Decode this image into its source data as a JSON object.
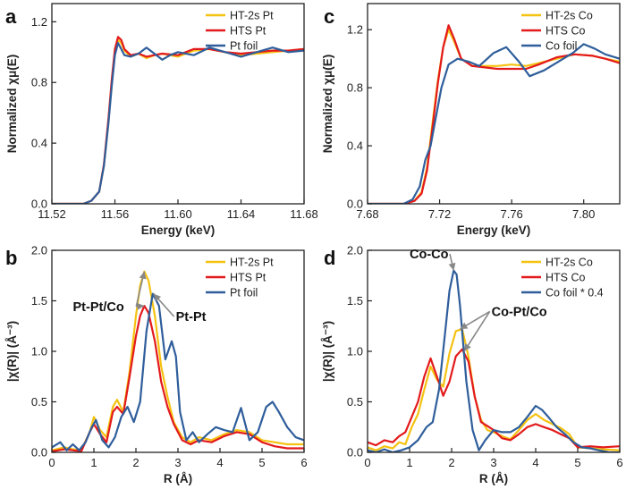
{
  "chart_data": [
    {
      "panel": "a",
      "type": "line",
      "xlabel": "Energy (keV)",
      "ylabel": "Normalized χμ(E)",
      "xlim": [
        11.52,
        11.68
      ],
      "ylim": [
        0,
        1.32
      ],
      "xticks": [
        11.52,
        11.56,
        11.6,
        11.64,
        11.68
      ],
      "xtick_labels": [
        "11.52",
        "11.56",
        "11.60",
        "11.64",
        "11.68"
      ],
      "yticks": [
        0,
        0.4,
        0.8,
        1.2
      ],
      "ytick_labels": [
        "0.0",
        "0.4",
        "0.8",
        "1.2"
      ],
      "legend_position": "top-right",
      "series": [
        {
          "name": "HT-2s Pt",
          "color": "#f5c211",
          "x": [
            11.52,
            11.54,
            11.545,
            11.55,
            11.553,
            11.556,
            11.558,
            11.56,
            11.562,
            11.564,
            11.566,
            11.57,
            11.575,
            11.58,
            11.585,
            11.59,
            11.6,
            11.61,
            11.62,
            11.63,
            11.64,
            11.65,
            11.66,
            11.67,
            11.68
          ],
          "y": [
            0.0,
            0.0,
            0.02,
            0.08,
            0.25,
            0.55,
            0.8,
            1.0,
            1.08,
            1.06,
            1.01,
            0.97,
            0.99,
            0.96,
            0.98,
            0.99,
            0.97,
            1.01,
            1.02,
            1.0,
            0.98,
            0.99,
            1.0,
            1.01,
            1.02
          ]
        },
        {
          "name": "HTS Pt",
          "color": "#e31a1c",
          "x": [
            11.52,
            11.54,
            11.545,
            11.55,
            11.553,
            11.556,
            11.558,
            11.56,
            11.562,
            11.564,
            11.566,
            11.57,
            11.575,
            11.58,
            11.585,
            11.59,
            11.6,
            11.61,
            11.62,
            11.63,
            11.64,
            11.65,
            11.66,
            11.67,
            11.68
          ],
          "y": [
            0.0,
            0.0,
            0.02,
            0.08,
            0.26,
            0.57,
            0.82,
            1.02,
            1.1,
            1.08,
            1.02,
            0.98,
            0.99,
            0.97,
            0.98,
            0.99,
            0.98,
            1.02,
            1.02,
            1.0,
            0.99,
            1.0,
            1.01,
            1.01,
            1.02
          ]
        },
        {
          "name": "Pt foil",
          "color": "#2f5e9b",
          "x": [
            11.52,
            11.54,
            11.545,
            11.55,
            11.553,
            11.556,
            11.558,
            11.56,
            11.562,
            11.564,
            11.566,
            11.57,
            11.575,
            11.58,
            11.585,
            11.59,
            11.595,
            11.6,
            11.61,
            11.62,
            11.63,
            11.64,
            11.65,
            11.66,
            11.67,
            11.68
          ],
          "y": [
            0.0,
            0.0,
            0.02,
            0.08,
            0.25,
            0.54,
            0.78,
            0.98,
            1.06,
            1.02,
            0.98,
            0.97,
            0.99,
            1.03,
            0.99,
            0.95,
            0.98,
            1.0,
            0.98,
            1.03,
            1.0,
            0.97,
            1.0,
            1.03,
            1.0,
            1.01
          ]
        }
      ]
    },
    {
      "panel": "b",
      "type": "line",
      "xlabel": "R (Å)",
      "ylabel": "|χ(R)| (Å⁻³)",
      "xlim": [
        0,
        6
      ],
      "ylim": [
        0,
        2.0
      ],
      "xticks": [
        0,
        1,
        2,
        3,
        4,
        5,
        6
      ],
      "xtick_labels": [
        "0",
        "1",
        "2",
        "3",
        "4",
        "5",
        "6"
      ],
      "yticks": [
        0,
        0.5,
        1.0,
        1.5,
        2.0
      ],
      "ytick_labels": [
        "0.0",
        "0.5",
        "1.0",
        "1.5",
        "2.0"
      ],
      "legend_position": "top-right",
      "annotations": [
        {
          "text": "Pt-Pt/Co",
          "x": 0.5,
          "y": 1.4
        },
        {
          "text": "Pt-Pt",
          "x": 2.95,
          "y": 1.3
        }
      ],
      "series": [
        {
          "name": "HT-2s Pt",
          "color": "#f5c211",
          "x": [
            0,
            0.3,
            0.5,
            0.7,
            0.9,
            1.0,
            1.15,
            1.3,
            1.45,
            1.55,
            1.7,
            1.85,
            2.0,
            2.1,
            2.2,
            2.3,
            2.45,
            2.6,
            2.75,
            2.9,
            3.1,
            3.3,
            3.5,
            3.8,
            4.1,
            4.4,
            4.7,
            5.0,
            5.3,
            5.6,
            6.0
          ],
          "y": [
            0.02,
            0.05,
            0.03,
            0.02,
            0.2,
            0.35,
            0.22,
            0.15,
            0.45,
            0.52,
            0.4,
            0.8,
            1.35,
            1.65,
            1.79,
            1.7,
            1.35,
            0.85,
            0.55,
            0.3,
            0.15,
            0.1,
            0.15,
            0.12,
            0.18,
            0.22,
            0.2,
            0.12,
            0.1,
            0.08,
            0.08
          ]
        },
        {
          "name": "HTS Pt",
          "color": "#e31a1c",
          "x": [
            0,
            0.3,
            0.5,
            0.7,
            0.9,
            1.0,
            1.15,
            1.3,
            1.45,
            1.55,
            1.7,
            1.85,
            2.0,
            2.1,
            2.2,
            2.3,
            2.45,
            2.6,
            2.75,
            2.9,
            3.1,
            3.3,
            3.5,
            3.8,
            4.1,
            4.4,
            4.7,
            5.0,
            5.3,
            5.6,
            6.0
          ],
          "y": [
            0.01,
            0.03,
            0.02,
            0.01,
            0.2,
            0.28,
            0.18,
            0.1,
            0.4,
            0.45,
            0.38,
            0.75,
            1.15,
            1.35,
            1.45,
            1.38,
            1.1,
            0.7,
            0.45,
            0.28,
            0.12,
            0.08,
            0.12,
            0.1,
            0.16,
            0.2,
            0.18,
            0.1,
            0.06,
            0.04,
            0.04
          ]
        },
        {
          "name": "Pt foil",
          "color": "#2f5e9b",
          "x": [
            0,
            0.2,
            0.35,
            0.5,
            0.65,
            0.8,
            0.95,
            1.05,
            1.2,
            1.35,
            1.5,
            1.65,
            1.8,
            1.95,
            2.1,
            2.25,
            2.4,
            2.55,
            2.7,
            2.85,
            2.95,
            3.05,
            3.2,
            3.35,
            3.5,
            3.7,
            3.9,
            4.1,
            4.3,
            4.5,
            4.7,
            4.9,
            5.1,
            5.25,
            5.4,
            5.6,
            5.8,
            6.0
          ],
          "y": [
            0.05,
            0.1,
            0.02,
            0.08,
            0.02,
            0.1,
            0.25,
            0.32,
            0.12,
            0.05,
            0.15,
            0.35,
            0.45,
            0.3,
            0.5,
            1.2,
            1.57,
            1.45,
            0.92,
            1.1,
            0.95,
            0.4,
            0.12,
            0.2,
            0.1,
            0.18,
            0.25,
            0.22,
            0.2,
            0.44,
            0.12,
            0.2,
            0.45,
            0.5,
            0.4,
            0.25,
            0.15,
            0.12
          ]
        }
      ]
    },
    {
      "panel": "c",
      "type": "line",
      "xlabel": "Energy (keV)",
      "ylabel": "Normalized χμ(E)",
      "xlim": [
        7.68,
        7.82
      ],
      "ylim": [
        0,
        1.38
      ],
      "xticks": [
        7.68,
        7.72,
        7.76,
        7.8
      ],
      "xtick_labels": [
        "7.68",
        "7.72",
        "7.76",
        "7.80"
      ],
      "yticks": [
        0,
        0.4,
        0.8,
        1.2
      ],
      "ytick_labels": [
        "0.0",
        "0.4",
        "0.8",
        "1.2"
      ],
      "legend_position": "top-right",
      "series": [
        {
          "name": "HT-2s Co",
          "color": "#f5c211",
          "x": [
            7.68,
            7.7,
            7.706,
            7.71,
            7.713,
            7.716,
            7.719,
            7.722,
            7.725,
            7.728,
            7.732,
            7.738,
            7.745,
            7.752,
            7.76,
            7.768,
            7.775,
            7.785,
            7.795,
            7.805,
            7.812,
            7.82
          ],
          "y": [
            0.0,
            0.0,
            0.02,
            0.08,
            0.25,
            0.55,
            0.85,
            1.08,
            1.2,
            1.12,
            1.0,
            0.95,
            0.95,
            0.95,
            0.96,
            0.95,
            0.97,
            1.0,
            1.03,
            1.02,
            1.0,
            0.98
          ]
        },
        {
          "name": "HTS Co",
          "color": "#e31a1c",
          "x": [
            7.68,
            7.7,
            7.706,
            7.71,
            7.713,
            7.716,
            7.719,
            7.722,
            7.725,
            7.728,
            7.732,
            7.738,
            7.745,
            7.752,
            7.76,
            7.768,
            7.775,
            7.785,
            7.795,
            7.805,
            7.812,
            7.82
          ],
          "y": [
            0.0,
            0.0,
            0.02,
            0.07,
            0.23,
            0.52,
            0.83,
            1.08,
            1.23,
            1.14,
            1.0,
            0.95,
            0.94,
            0.93,
            0.93,
            0.93,
            0.96,
            1.01,
            1.03,
            1.02,
            1.0,
            0.97
          ]
        },
        {
          "name": "Co foil",
          "color": "#2f5e9b",
          "x": [
            7.68,
            7.7,
            7.705,
            7.709,
            7.712,
            7.715,
            7.718,
            7.721,
            7.725,
            7.73,
            7.736,
            7.742,
            7.75,
            7.757,
            7.764,
            7.77,
            7.778,
            7.786,
            7.794,
            7.8,
            7.806,
            7.812,
            7.82
          ],
          "y": [
            0.0,
            0.0,
            0.03,
            0.12,
            0.3,
            0.4,
            0.6,
            0.8,
            0.96,
            1.0,
            0.98,
            0.95,
            1.04,
            1.08,
            0.98,
            0.88,
            0.92,
            0.98,
            1.04,
            1.1,
            1.07,
            1.03,
            1.0
          ]
        }
      ]
    },
    {
      "panel": "d",
      "type": "line",
      "xlabel": "R (Å)",
      "ylabel": "|χ(R)| (Å⁻³)",
      "xlim": [
        0,
        6
      ],
      "ylim": [
        0,
        2.0
      ],
      "xticks": [
        0,
        1,
        2,
        3,
        4,
        5,
        6
      ],
      "xtick_labels": [
        "0",
        "1",
        "2",
        "3",
        "4",
        "5",
        "6"
      ],
      "yticks": [
        0,
        0.5,
        1.0,
        1.5,
        2.0
      ],
      "ytick_labels": [
        "0.0",
        "0.5",
        "1.0",
        "1.5",
        "2.0"
      ],
      "legend_position": "top-right",
      "annotations": [
        {
          "text": "Co-Co",
          "x": 1.0,
          "y": 1.92
        },
        {
          "text": "Co-Pt/Co",
          "x": 2.95,
          "y": 1.35
        }
      ],
      "series": [
        {
          "name": "HT-2s Co",
          "color": "#f5c211",
          "x": [
            0,
            0.2,
            0.4,
            0.6,
            0.75,
            0.9,
            1.05,
            1.2,
            1.35,
            1.5,
            1.65,
            1.8,
            1.95,
            2.1,
            2.25,
            2.4,
            2.55,
            2.7,
            2.85,
            3.0,
            3.2,
            3.4,
            3.6,
            3.8,
            4.0,
            4.2,
            4.4,
            4.6,
            4.8,
            5.0,
            5.3,
            5.6,
            6.0
          ],
          "y": [
            0.05,
            0.02,
            0.06,
            0.04,
            0.1,
            0.08,
            0.25,
            0.38,
            0.62,
            0.85,
            0.72,
            0.65,
            0.98,
            1.2,
            1.22,
            0.95,
            0.55,
            0.32,
            0.22,
            0.2,
            0.16,
            0.13,
            0.22,
            0.32,
            0.38,
            0.32,
            0.28,
            0.24,
            0.18,
            0.05,
            0.04,
            0.03,
            0.02
          ]
        },
        {
          "name": "HTS Co",
          "color": "#e31a1c",
          "x": [
            0,
            0.2,
            0.4,
            0.6,
            0.75,
            0.9,
            1.05,
            1.2,
            1.35,
            1.5,
            1.65,
            1.8,
            1.95,
            2.1,
            2.25,
            2.4,
            2.55,
            2.7,
            2.85,
            3.0,
            3.2,
            3.4,
            3.6,
            3.8,
            4.0,
            4.2,
            4.4,
            4.6,
            4.8,
            5.0,
            5.3,
            5.6,
            6.0
          ],
          "y": [
            0.1,
            0.07,
            0.12,
            0.1,
            0.16,
            0.2,
            0.35,
            0.5,
            0.75,
            0.93,
            0.75,
            0.56,
            0.7,
            0.95,
            1.02,
            0.9,
            0.55,
            0.3,
            0.26,
            0.22,
            0.14,
            0.12,
            0.18,
            0.25,
            0.28,
            0.25,
            0.22,
            0.18,
            0.14,
            0.05,
            0.06,
            0.05,
            0.06
          ]
        },
        {
          "name": "Co foil * 0.4",
          "color": "#2f5e9b",
          "x": [
            0,
            0.2,
            0.4,
            0.6,
            0.8,
            1.0,
            1.2,
            1.4,
            1.55,
            1.7,
            1.85,
            1.95,
            2.05,
            2.12,
            2.2,
            2.35,
            2.5,
            2.65,
            2.8,
            3.0,
            3.2,
            3.4,
            3.6,
            3.8,
            4.0,
            4.15,
            4.3,
            4.5,
            4.7,
            4.9,
            5.1,
            5.3,
            5.5,
            5.75,
            6.0
          ],
          "y": [
            0.02,
            0.0,
            0.03,
            0.0,
            0.02,
            0.05,
            0.12,
            0.25,
            0.3,
            0.62,
            1.2,
            1.6,
            1.8,
            1.76,
            1.45,
            0.7,
            0.22,
            0.02,
            0.12,
            0.22,
            0.2,
            0.2,
            0.25,
            0.35,
            0.46,
            0.42,
            0.35,
            0.25,
            0.18,
            0.1,
            0.05,
            0.04,
            0.02,
            0.0,
            0.0
          ]
        }
      ]
    }
  ]
}
